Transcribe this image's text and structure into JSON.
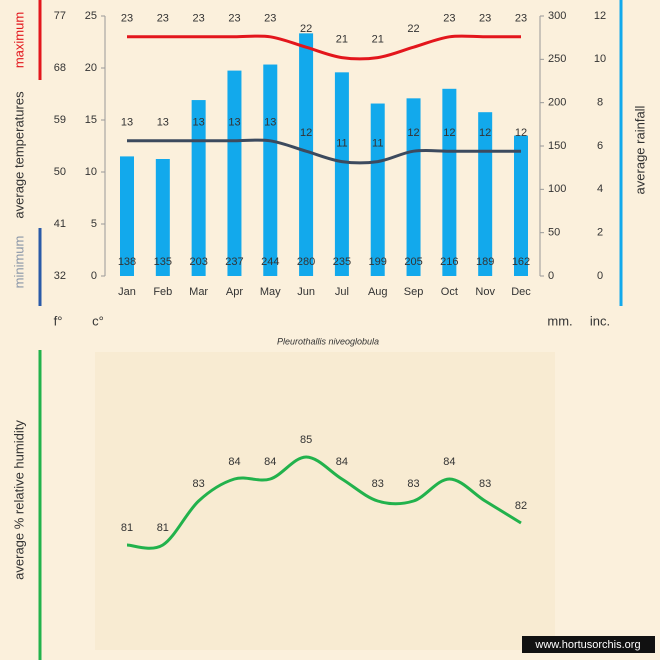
{
  "chart_data": [
    {
      "type": "combo",
      "title": "Pleurothallis niveoglobula",
      "categories": [
        "Jan",
        "Feb",
        "Mar",
        "Apr",
        "May",
        "Jun",
        "Jul",
        "Aug",
        "Sep",
        "Oct",
        "Nov",
        "Dec"
      ],
      "series": [
        {
          "name": "average rainfall",
          "type": "bar",
          "axis": "y2",
          "color": "#12a9ec",
          "values": [
            138,
            135,
            203,
            237,
            244,
            280,
            235,
            199,
            205,
            216,
            189,
            162
          ]
        },
        {
          "name": "maximum",
          "type": "line",
          "axis": "y",
          "color": "#e3161c",
          "values": [
            23,
            23,
            23,
            23,
            23,
            22,
            21,
            21,
            22,
            23,
            23,
            23
          ]
        },
        {
          "name": "minimum",
          "type": "line",
          "axis": "y",
          "color": "#3c4a5e",
          "values": [
            13,
            13,
            13,
            13,
            13,
            12,
            11,
            11,
            12,
            12,
            12,
            12
          ]
        }
      ],
      "y_label": "average temperatures",
      "y_unit": "c°",
      "ylim": [
        0,
        25
      ],
      "yticks": [
        0,
        5,
        10,
        15,
        20,
        25
      ],
      "y3_unit": "f°",
      "y3lim": [
        32,
        77
      ],
      "y3ticks": [
        32,
        41,
        50,
        59,
        68,
        77
      ],
      "y2_label": "average rainfall",
      "y2_unit": "mm.",
      "y2lim": [
        0,
        300
      ],
      "y2ticks": [
        0,
        50,
        100,
        150,
        200,
        250,
        300
      ],
      "y4_unit": "inc.",
      "y4lim": [
        0,
        12
      ],
      "y4ticks": [
        0,
        2,
        4,
        6,
        8,
        10,
        12
      ]
    },
    {
      "type": "line",
      "y_label": "average %  relative humidity",
      "color": "#22b24c",
      "values": [
        81,
        81,
        83,
        84,
        84,
        85,
        84,
        83,
        83,
        84,
        83,
        82
      ]
    }
  ],
  "watermark": "www.hortusorchis.org"
}
